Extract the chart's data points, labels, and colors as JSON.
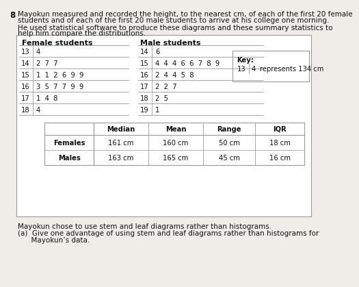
{
  "question_number": "8",
  "intro_lines": [
    "Mayokun measured and recorded the height, to the nearest cm, of each of the first 20 female",
    "students and of each of the first 20 male students to arrive at his college one morning."
  ],
  "intro2_lines": [
    "He used statistical software to produce these diagrams and these summary statistics to",
    "help him compare the distributions."
  ],
  "female_header": "Female students",
  "male_header": "Male students",
  "female_rows": [
    {
      "stem": "13",
      "leaves": "4"
    },
    {
      "stem": "14",
      "leaves": "2  7  7"
    },
    {
      "stem": "15",
      "leaves": "1  1  2  6  9  9"
    },
    {
      "stem": "16",
      "leaves": "3  5  7  7  9  9"
    },
    {
      "stem": "17",
      "leaves": "1  4  8"
    },
    {
      "stem": "18",
      "leaves": "4"
    }
  ],
  "male_rows": [
    {
      "stem": "14",
      "leaves": "6"
    },
    {
      "stem": "15",
      "leaves": "4  4  4  6  6  7  8  9"
    },
    {
      "stem": "16",
      "leaves": "2  4  4  5  8"
    },
    {
      "stem": "17",
      "leaves": "2  2  7"
    },
    {
      "stem": "18",
      "leaves": "2  5"
    },
    {
      "stem": "19",
      "leaves": "1"
    }
  ],
  "key_stem": "13",
  "key_leaf": "4",
  "key_text": "represents 134 cm",
  "stats_headers": [
    "",
    "Median",
    "Mean",
    "Range",
    "IQR"
  ],
  "stats_rows": [
    [
      "Females",
      "161 cm",
      "160 cm",
      "50 cm",
      "18 cm"
    ],
    [
      "Males",
      "163 cm",
      "165 cm",
      "45 cm",
      "16 cm"
    ]
  ],
  "footer_line1": "Mayokun chose to use stem and leaf diagrams rather than histograms.",
  "footer_line2": "(a)  Give one advantage of using stem and leaf diagrams rather than histograms for",
  "footer_line3": "      Mayokun’s data.",
  "bg_color": "#f0ede8",
  "box_color": "#ffffff",
  "line_color": "#999999",
  "text_color": "#111111",
  "fs_body": 7.5,
  "fs_small": 7.2,
  "fs_header": 8.0,
  "fs_q": 8.5
}
